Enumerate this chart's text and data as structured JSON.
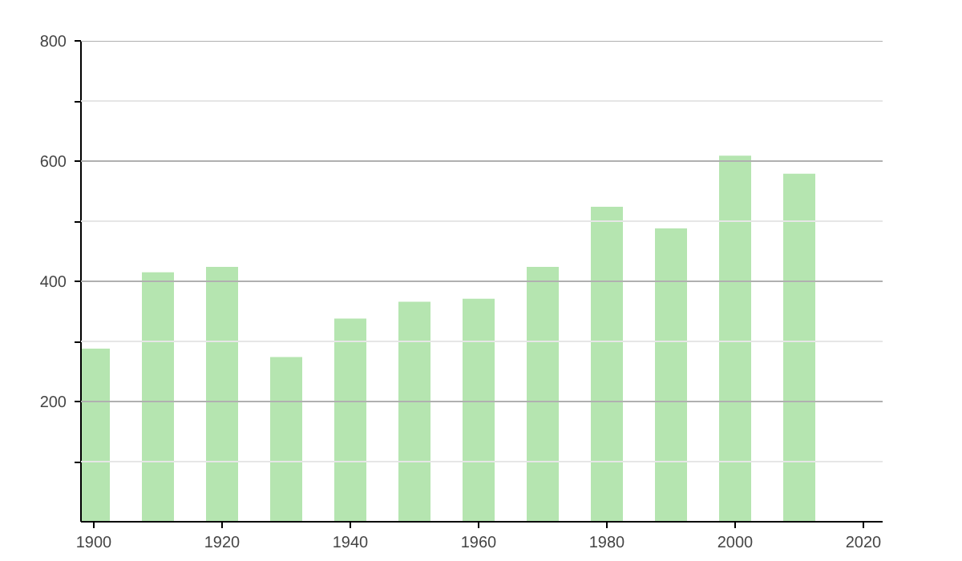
{
  "chart_data": {
    "type": "bar",
    "x": [
      1900,
      1910,
      1920,
      1930,
      1940,
      1950,
      1960,
      1970,
      1980,
      1990,
      2000,
      2010
    ],
    "values": [
      288,
      415,
      424,
      274,
      338,
      366,
      371,
      424,
      524,
      488,
      609,
      579
    ],
    "color": "#b5e5b0",
    "xlim": [
      1898,
      2023
    ],
    "xticks": [
      1900,
      1920,
      1940,
      1960,
      1980,
      2000,
      2020
    ],
    "ylim": [
      0,
      800
    ],
    "yticks": [
      {
        "value": 100,
        "label": null
      },
      200,
      {
        "value": 300,
        "label": null
      },
      400,
      {
        "value": 500,
        "label": null
      },
      600,
      {
        "value": 700,
        "label": null
      },
      800
    ],
    "grid": "y"
  }
}
